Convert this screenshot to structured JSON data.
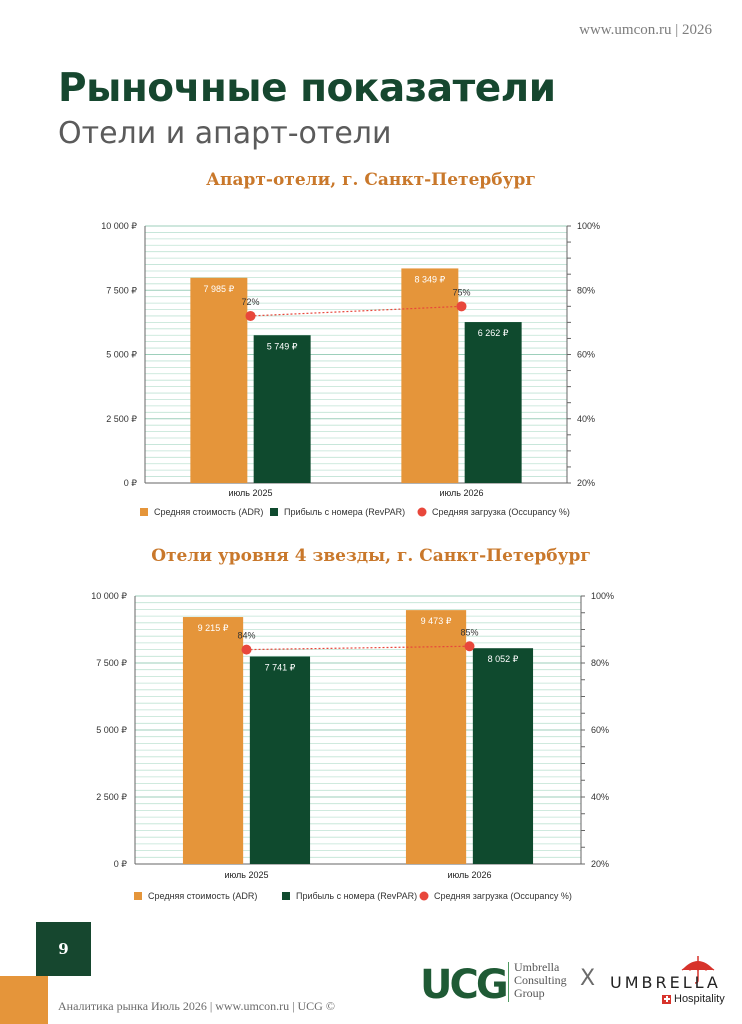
{
  "header": {
    "site": "www.umcon.ru | 2026"
  },
  "page": {
    "title": "Рыночные показатели",
    "subtitle": "Отели и апарт-отели"
  },
  "colors": {
    "adr": "#e5953a",
    "revpar": "#0f4a2e",
    "occupancy": "#e8473b",
    "title_green": "#16472f",
    "chart_title": "#c9782b"
  },
  "legend": {
    "adr": "Средняя стоимость (ADR)",
    "revpar": "Прибыль с номера (RevPAR)",
    "occupancy": "Средняя загрузка (Occupancy %)"
  },
  "chart_data": [
    {
      "type": "bar",
      "title": "Апарт-отели, г. Санкт-Петербург",
      "categories": [
        "июль 2025",
        "июль 2026"
      ],
      "series": [
        {
          "name": "Средняя стоимость (ADR)",
          "values": [
            7985,
            8349
          ],
          "labels": [
            "7 985 ₽",
            "8 349 ₽"
          ]
        },
        {
          "name": "Прибыль с номера (RevPAR)",
          "values": [
            5749,
            6262
          ],
          "labels": [
            "5 749 ₽",
            "6 262 ₽"
          ]
        },
        {
          "name": "Средняя загрузка (Occupancy %)",
          "axis": "right",
          "type": "line",
          "values": [
            72,
            75
          ],
          "labels": [
            "72%",
            "75%"
          ]
        }
      ],
      "ylim": [
        0,
        10000
      ],
      "y_ticks": [
        0,
        2500,
        5000,
        7500,
        10000
      ],
      "y_tick_labels": [
        "0 ₽",
        "2 500 ₽",
        "5 000 ₽",
        "7 500 ₽",
        "10 000 ₽"
      ],
      "y2lim": [
        20,
        100
      ],
      "y2_ticks": [
        20,
        40,
        60,
        80,
        100
      ],
      "y2_tick_labels": [
        "20%",
        "40%",
        "60%",
        "80%",
        "100%"
      ],
      "grid": true,
      "legend_position": "bottom"
    },
    {
      "type": "bar",
      "title": "Отели уровня 4 звезды, г. Санкт-Петербург",
      "categories": [
        "июль 2025",
        "июль 2026"
      ],
      "series": [
        {
          "name": "Средняя стоимость (ADR)",
          "values": [
            9215,
            9473
          ],
          "labels": [
            "9 215 ₽",
            "9 473 ₽"
          ]
        },
        {
          "name": "Прибыль с номера (RevPAR)",
          "values": [
            7741,
            8052
          ],
          "labels": [
            "7 741 ₽",
            "8 052 ₽"
          ]
        },
        {
          "name": "Средняя загрузка (Occupancy %)",
          "axis": "right",
          "type": "line",
          "values": [
            84,
            85
          ],
          "labels": [
            "84%",
            "85%"
          ]
        }
      ],
      "ylim": [
        0,
        10000
      ],
      "y_ticks": [
        0,
        2500,
        5000,
        7500,
        10000
      ],
      "y_tick_labels": [
        "0 ₽",
        "2 500 ₽",
        "5 000 ₽",
        "7 500 ₽",
        "10 000 ₽"
      ],
      "y2lim": [
        20,
        100
      ],
      "y2_ticks": [
        20,
        40,
        60,
        80,
        100
      ],
      "y2_tick_labels": [
        "20%",
        "40%",
        "60%",
        "80%",
        "100%"
      ],
      "grid": true,
      "legend_position": "bottom"
    }
  ],
  "footer": {
    "page_number": "9",
    "text": "Аналитика рынка Июль 2026 | www.umcon.ru | UCG ©",
    "ucg_logo": "UCG",
    "ucg_tagline": [
      "Umbrella",
      "Consulting",
      "Group"
    ],
    "x_mark": "X",
    "umbrella_logo": "UMBRELLA",
    "umbrella_sub": "Hospitality",
    "umbrella_icon": "umbrella-icon",
    "swiss_icon": "swiss-cross-icon"
  }
}
